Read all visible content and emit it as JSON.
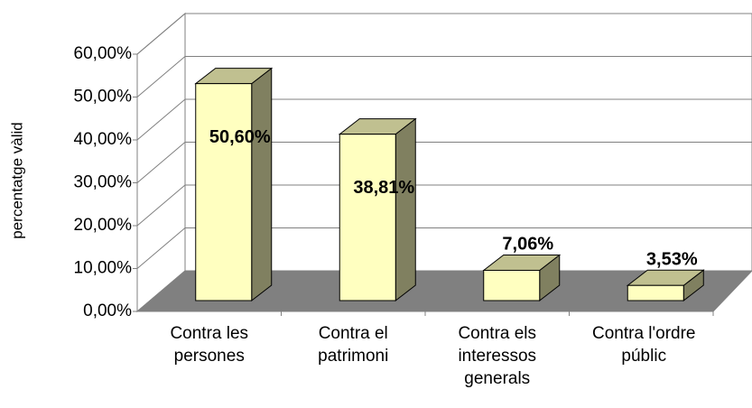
{
  "chart_data": {
    "type": "bar3d",
    "y_label": "percentatge vàlid",
    "categories": [
      "Contra les persones",
      "Contra el patrimoni",
      "Contra els interessos generals",
      "Contra l'ordre públic"
    ],
    "values": [
      50.6,
      38.81,
      7.06,
      3.53
    ],
    "value_labels": [
      "50,60%",
      "38,81%",
      "7,06%",
      "3,53%"
    ],
    "color": "#ffffc0",
    "ylim": [
      0,
      60
    ],
    "yticks": [
      {
        "value": 0,
        "label": "0,00%"
      },
      {
        "value": 10,
        "label": "10,00%"
      },
      {
        "value": 20,
        "label": "20,00%"
      },
      {
        "value": 30,
        "label": "30,00%"
      },
      {
        "value": 40,
        "label": "40,00%"
      },
      {
        "value": 50,
        "label": "50,00%"
      },
      {
        "value": 60,
        "label": "60,00%"
      }
    ],
    "grid": true
  }
}
